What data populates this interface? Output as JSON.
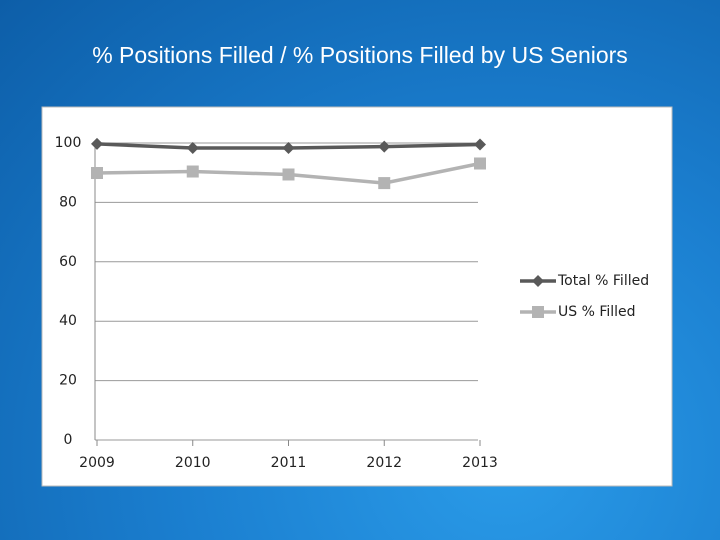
{
  "chart_data": {
    "type": "line",
    "title": "% Positions Filled / % Positions Filled by US Seniors",
    "categories": [
      "2009",
      "2010",
      "2011",
      "2012",
      "2013"
    ],
    "series": [
      {
        "name": "Total % Filled",
        "color": "#595959",
        "marker": "diamond",
        "values": [
          99.7,
          98.3,
          98.3,
          98.8,
          99.5
        ]
      },
      {
        "name": "US % Filled",
        "color": "#b3b3b3",
        "marker": "square",
        "values": [
          89.9,
          90.4,
          89.4,
          86.5,
          93.1
        ]
      }
    ],
    "ylim": [
      0,
      100
    ],
    "yticks": [
      0,
      20,
      40,
      60,
      80,
      100
    ],
    "grid": true,
    "legend": "right"
  }
}
